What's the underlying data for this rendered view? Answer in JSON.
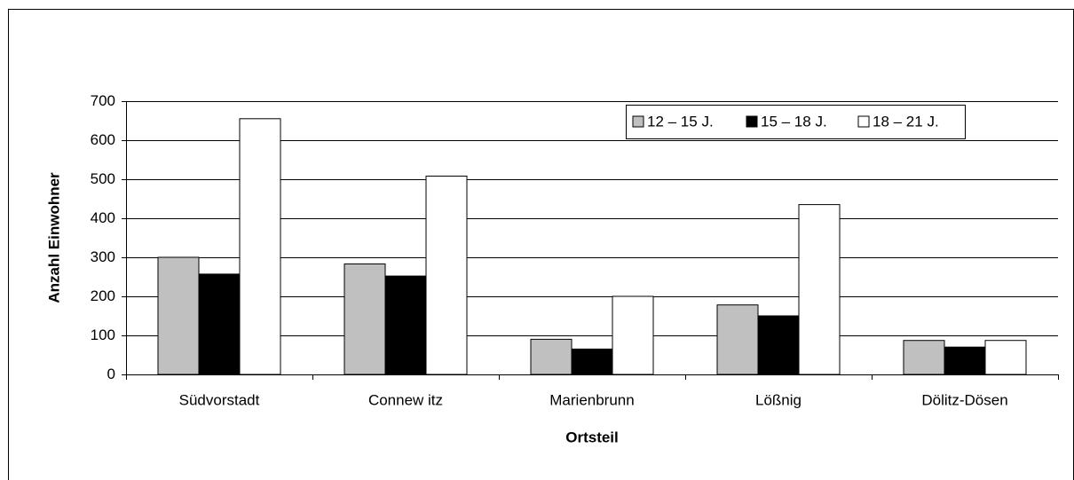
{
  "chart_data": {
    "type": "bar",
    "xlabel": "Ortsteil",
    "ylabel": "Anzahl Einwohner",
    "categories": [
      "Südvorstadt",
      "Connew itz",
      "Marienbrunn",
      "Lößnig",
      "Dölitz-Dösen"
    ],
    "series": [
      {
        "name": "12 – 15 J.",
        "color": "#c0c0c0",
        "values": [
          300,
          283,
          90,
          178,
          87
        ]
      },
      {
        "name": "15 – 18 J.",
        "color": "#000000",
        "values": [
          257,
          252,
          65,
          150,
          70
        ]
      },
      {
        "name": "18 – 21 J.",
        "color": "#ffffff",
        "values": [
          655,
          508,
          200,
          435,
          87
        ]
      }
    ],
    "ylim": [
      0,
      700
    ],
    "yticks": [
      0,
      100,
      200,
      300,
      400,
      500,
      600,
      700
    ],
    "grid": true,
    "legend": "top-right"
  }
}
